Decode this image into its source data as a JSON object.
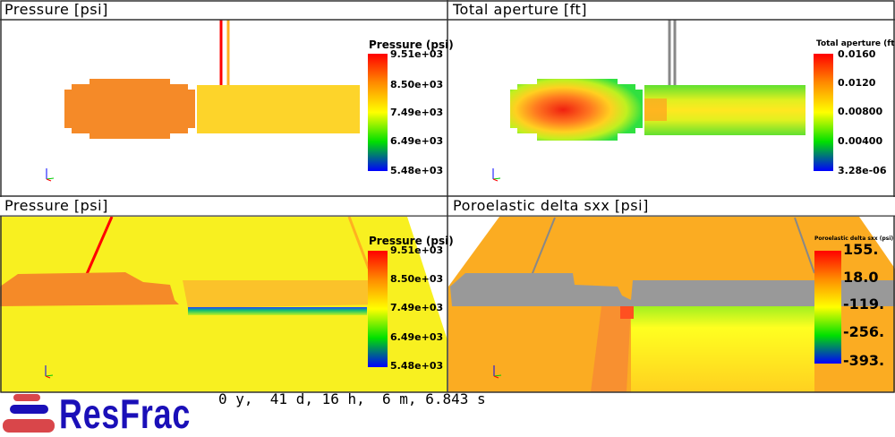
{
  "panels": [
    {
      "title": "Pressure [psi]",
      "colorbar": {
        "title": "Pressure (psi)",
        "labels": [
          "9.51e+03",
          "8.50e+03",
          "7.49e+03",
          "6.49e+03",
          "5.48e+03"
        ]
      }
    },
    {
      "title": "Total aperture [ft]",
      "colorbar": {
        "title": "Total aperture (ft)",
        "labels": [
          "0.0160",
          "0.0120",
          "0.00800",
          "0.00400",
          "3.28e-06"
        ]
      }
    },
    {
      "title": "Pressure [psi]",
      "colorbar": {
        "title": "Pressure (psi)",
        "labels": [
          "9.51e+03",
          "8.50e+03",
          "7.49e+03",
          "6.49e+03",
          "5.48e+03"
        ]
      }
    },
    {
      "title": "Poroelastic delta sxx [psi]",
      "colorbar": {
        "title": "Poroelastic delta sxx (psi)",
        "labels": [
          "155.",
          "18.0",
          "-119.",
          "-256.",
          "-393."
        ]
      }
    }
  ],
  "time": "0 y,  41 d, 16 h,  6 m, 6.843 s",
  "logo": {
    "text": "ResFrac",
    "colors": {
      "red": "#d9464a",
      "blue": "#1a0fb8"
    }
  },
  "colormap": [
    "#ff0000",
    "#ff8000",
    "#ffff00",
    "#00ff00",
    "#0000ff"
  ]
}
